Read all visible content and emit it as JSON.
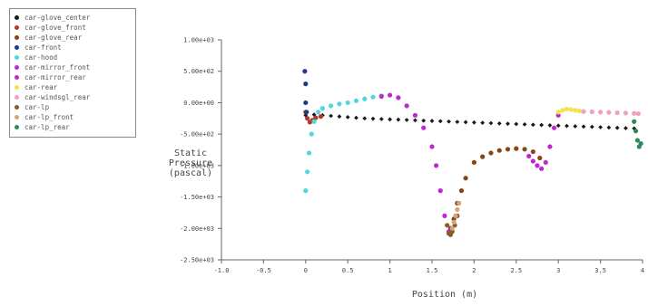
{
  "chart_data": {
    "type": "scatter",
    "title": "",
    "xlabel": "Position (m)",
    "ylabel": [
      "Static",
      "Pressure",
      "(pascal)"
    ],
    "xlim": [
      -1.0,
      4.0
    ],
    "ylim": [
      -2500,
      1000
    ],
    "x_ticks": [
      -1.0,
      -0.5,
      0,
      0.5,
      1,
      1.5,
      2,
      2.5,
      3,
      3.5,
      4
    ],
    "x_tick_labels": [
      "-1.0",
      "-0.5",
      "0",
      "0.5",
      "1",
      "1.5",
      "2",
      "2.5",
      "3",
      "3.5",
      "4"
    ],
    "y_ticks": [
      1000,
      500,
      0,
      -500,
      -1000,
      -1500,
      -2000,
      -2500
    ],
    "y_tick_labels": [
      "1.00e+03",
      "5.00e+02",
      "0.00e+00",
      "-5.00e+02",
      "-1.00e+03",
      "-1.50e+03",
      "-2.00e+03",
      "-2.50e+03"
    ],
    "legend_position": "top-left",
    "series": [
      {
        "name": "car-glove_center",
        "color": "#1a1a1a",
        "marker": "diamond",
        "x": [
          0.0,
          0.1,
          0.2,
          0.3,
          0.4,
          0.5,
          0.6,
          0.7,
          0.8,
          0.9,
          1.0,
          1.1,
          1.2,
          1.3,
          1.4,
          1.5,
          1.6,
          1.7,
          1.8,
          1.9,
          2.0,
          2.1,
          2.2,
          2.3,
          2.4,
          2.5,
          2.6,
          2.7,
          2.8,
          2.9,
          3.0,
          3.1,
          3.2,
          3.3,
          3.4,
          3.5,
          3.6,
          3.7,
          3.8,
          3.9
        ],
        "y": [
          -200,
          -190,
          -200,
          -210,
          -220,
          -230,
          -240,
          -250,
          -255,
          -260,
          -265,
          -270,
          -275,
          -280,
          -285,
          -290,
          -295,
          -300,
          -305,
          -310,
          -315,
          -320,
          -325,
          -330,
          -335,
          -340,
          -345,
          -350,
          -355,
          -360,
          -365,
          -370,
          -375,
          -380,
          -385,
          -390,
          -395,
          -400,
          -405,
          -410
        ]
      },
      {
        "name": "car-glove_front",
        "color": "#b03a2e",
        "marker": "dot",
        "x": [
          0.0,
          0.02,
          0.05,
          0.08,
          0.12,
          0.18
        ],
        "y": [
          -150,
          -250,
          -310,
          -280,
          -240,
          -220
        ]
      },
      {
        "name": "car-glove_rear",
        "color": "#8b4513",
        "marker": "dot",
        "x": [
          1.72,
          1.76,
          1.8,
          1.85,
          1.9,
          2.0,
          2.1,
          2.2,
          2.3,
          2.4,
          2.5,
          2.6,
          2.7,
          2.78
        ],
        "y": [
          -2000,
          -1850,
          -1600,
          -1400,
          -1200,
          -950,
          -860,
          -800,
          -760,
          -740,
          -730,
          -740,
          -780,
          -880
        ]
      },
      {
        "name": "car-front",
        "color": "#1e3a8a",
        "marker": "dot",
        "x": [
          -0.01,
          0.0,
          0.0,
          0.01
        ],
        "y": [
          500,
          300,
          0,
          -150
        ]
      },
      {
        "name": "car-hood",
        "color": "#4dd8e0",
        "marker": "dot",
        "x": [
          0.0,
          0.02,
          0.04,
          0.07,
          0.1,
          0.15,
          0.2,
          0.3,
          0.4,
          0.5,
          0.6,
          0.7,
          0.8,
          0.9
        ],
        "y": [
          -1400,
          -1100,
          -800,
          -500,
          -300,
          -150,
          -90,
          -50,
          -20,
          0,
          30,
          60,
          90,
          110
        ]
      },
      {
        "name": "car-mirror_front",
        "color": "#c026d3",
        "marker": "dot",
        "x": [
          0.9,
          1.0,
          1.1,
          1.2,
          1.3,
          1.4,
          1.5,
          1.55,
          1.6,
          1.65,
          1.7
        ],
        "y": [
          100,
          120,
          80,
          -50,
          -200,
          -400,
          -700,
          -1000,
          -1400,
          -1800,
          -2050
        ]
      },
      {
        "name": "car-mirror_rear",
        "color": "#c026d3",
        "marker": "dot",
        "x": [
          2.65,
          2.7,
          2.75,
          2.8,
          2.85,
          2.9,
          2.95,
          3.0
        ],
        "y": [
          -850,
          -930,
          -1000,
          -1050,
          -950,
          -700,
          -400,
          -200
        ]
      },
      {
        "name": "car-rear",
        "color": "#f2e24d",
        "marker": "dot",
        "x": [
          3.0,
          3.05,
          3.1,
          3.15,
          3.2,
          3.25,
          3.3
        ],
        "y": [
          -150,
          -120,
          -100,
          -110,
          -120,
          -130,
          -140
        ]
      },
      {
        "name": "car-windsgl_rear",
        "color": "#f0a0c0",
        "marker": "dot",
        "x": [
          3.3,
          3.4,
          3.5,
          3.6,
          3.7,
          3.8,
          3.9,
          3.95
        ],
        "y": [
          -140,
          -145,
          -150,
          -155,
          -160,
          -165,
          -170,
          -175
        ]
      },
      {
        "name": "car-lp",
        "color": "#8b5a2b",
        "marker": "dot",
        "x": [
          1.68,
          1.7,
          1.72,
          1.74,
          1.77,
          1.8
        ],
        "y": [
          -1950,
          -2080,
          -2100,
          -2050,
          -1950,
          -1800
        ]
      },
      {
        "name": "car-lp_front",
        "color": "#d2a679",
        "marker": "dot",
        "x": [
          1.74,
          1.76,
          1.78,
          1.8,
          1.82
        ],
        "y": [
          -2000,
          -1900,
          -1800,
          -1700,
          -1600
        ]
      },
      {
        "name": "car-lp_rear",
        "color": "#2e8b57",
        "marker": "dot",
        "x": [
          3.9,
          3.92,
          3.94,
          3.96,
          3.98
        ],
        "y": [
          -300,
          -450,
          -600,
          -700,
          -650
        ]
      }
    ]
  }
}
